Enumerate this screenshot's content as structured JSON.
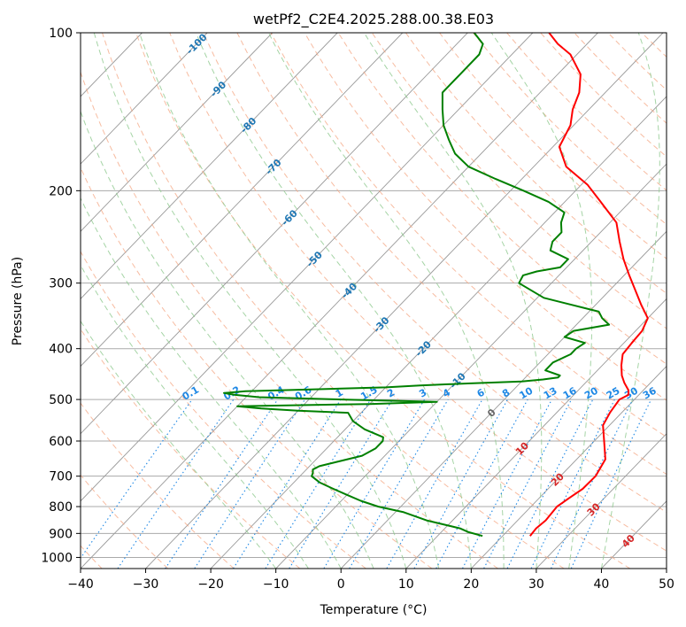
{
  "chart_data": {
    "type": "line",
    "subtype": "skew-t log-p diagram",
    "title": "wetPf2_C2E4.2025.288.00.38.E03",
    "xlabel": "Temperature (°C)",
    "ylabel": "Pressure (hPa)",
    "xlim": [
      -40,
      50
    ],
    "ylim": [
      1050,
      100
    ],
    "y_scale": "log",
    "grid": true,
    "x_ticks": [
      "−40",
      "−30",
      "−20",
      "−10",
      "0",
      "10",
      "20",
      "30",
      "40",
      "50"
    ],
    "y_ticks": [
      "100",
      "200",
      "300",
      "400",
      "500",
      "600",
      "700",
      "800",
      "900",
      "1000"
    ],
    "colors": {
      "temperature": "#ff0000",
      "dewpoint": "#008000",
      "isotherm": "#999999",
      "dry_adiabat": "#f4a582",
      "moist_adiabat": "#8fc98f",
      "mixing_ratio": "#1e88e5",
      "isobar": "#aaaaaa",
      "isotherm_label": "#1f77b4",
      "warm_label": "#d62728"
    },
    "series": [
      {
        "key": "temperature",
        "p": [
          910,
          880,
          850,
          800,
          770,
          740,
          700,
          650,
          600,
          560,
          530,
          500,
          490,
          480,
          465,
          450,
          430,
          410,
          390,
          370,
          350,
          330,
          310,
          290,
          270,
          250,
          230,
          210,
          195,
          180,
          165,
          150,
          140,
          130,
          120,
          110,
          105,
          100
        ],
        "t": [
          24.2,
          24.0,
          24.3,
          24.0,
          24.6,
          25.3,
          25.4,
          24.4,
          21.5,
          19.0,
          18.2,
          17.7,
          18.4,
          17.7,
          16.0,
          14.5,
          12.9,
          11.5,
          11.2,
          11.0,
          10.0,
          7.0,
          4.0,
          0.8,
          -2.5,
          -5.7,
          -9.0,
          -14.5,
          -19.0,
          -25.0,
          -29.0,
          -30.5,
          -32.5,
          -34.0,
          -36.5,
          -41.0,
          -44.5,
          -47.5
        ]
      },
      {
        "key": "dewpoint",
        "p": [
          910,
          895,
          880,
          850,
          820,
          800,
          780,
          760,
          740,
          720,
          700,
          690,
          680,
          670,
          640,
          620,
          600,
          590,
          570,
          550,
          530,
          525,
          520,
          515,
          510,
          505,
          500,
          495,
          490,
          486,
          482,
          478,
          474,
          470,
          466,
          462,
          458,
          454,
          450,
          440,
          425,
          410,
          400,
          390,
          380,
          370,
          360,
          350,
          340,
          320,
          300,
          290,
          285,
          280,
          270,
          260,
          250,
          240,
          230,
          220,
          210,
          200,
          190,
          180,
          170,
          160,
          150,
          140,
          130,
          120,
          110,
          105,
          100
        ],
        "t": [
          16.9,
          14.2,
          12.3,
          6.0,
          1.3,
          -3.5,
          -7.0,
          -10.0,
          -13.0,
          -16.0,
          -18.2,
          -18.5,
          -19.0,
          -18.5,
          -13.5,
          -12.5,
          -12.5,
          -13.0,
          -17.0,
          -20.0,
          -22.0,
          -30.0,
          -36.0,
          -40.0,
          -20.0,
          -10.0,
          -25.0,
          -38.0,
          -42.0,
          -44.0,
          -41.0,
          -30.0,
          -20.0,
          -15.0,
          -8.0,
          0.0,
          3.0,
          5.0,
          5.0,
          2.0,
          2.0,
          3.5,
          3.5,
          4.0,
          0.0,
          0.5,
          5.0,
          3.0,
          1.5,
          -9.0,
          -15.0,
          -15.5,
          -14.0,
          -11.0,
          -11.0,
          -15.0,
          -16.0,
          -16.0,
          -17.5,
          -18.5,
          -22.5,
          -28.0,
          -34.0,
          -40.0,
          -44.0,
          -47.0,
          -50.0,
          -52.5,
          -55.0,
          -55.0,
          -55.0,
          -56.0,
          -59.0
        ]
      }
    ],
    "isotherm_labels": [
      "-100",
      "-90",
      "-80",
      "-70",
      "-60",
      "-50",
      "-40",
      "-30",
      "-20",
      "-10",
      "0",
      "10",
      "20",
      "30",
      "40"
    ],
    "mixing_ratio_labels": [
      "0.1",
      "0.2",
      "0.4",
      "0.6",
      "1",
      "1.5",
      "2",
      "3",
      "4",
      "6",
      "8",
      "10",
      "13",
      "16",
      "20",
      "25",
      "30",
      "36"
    ]
  }
}
